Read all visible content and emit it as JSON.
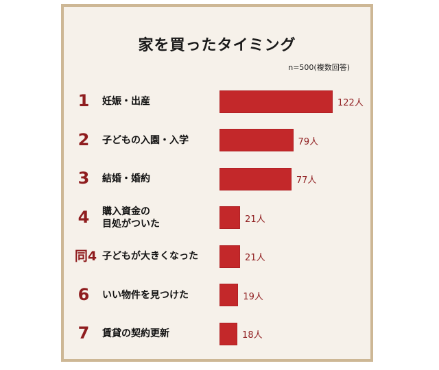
{
  "title": "家を買ったタイミング",
  "note": "n=500(複数回答)",
  "chart_data": {
    "type": "bar",
    "orientation": "horizontal",
    "categories": [
      "妊娠・出産",
      "子どもの入園・入学",
      "結婚・婚約",
      "購入資金の\n目処がついた",
      "子どもが大きくなった",
      "いい物件を見つけた",
      "賃貸の契約更新"
    ],
    "ranks": [
      "1",
      "2",
      "3",
      "4",
      "同4",
      "6",
      "7"
    ],
    "values": [
      122,
      79,
      77,
      21,
      21,
      19,
      18
    ],
    "value_labels": [
      "122人",
      "79人",
      "77人",
      "21人",
      "21人",
      "19人",
      "18人"
    ],
    "unit": "人",
    "bar_color": "#c3282a",
    "rank_color": "#8f1d1f",
    "grid": false
  }
}
